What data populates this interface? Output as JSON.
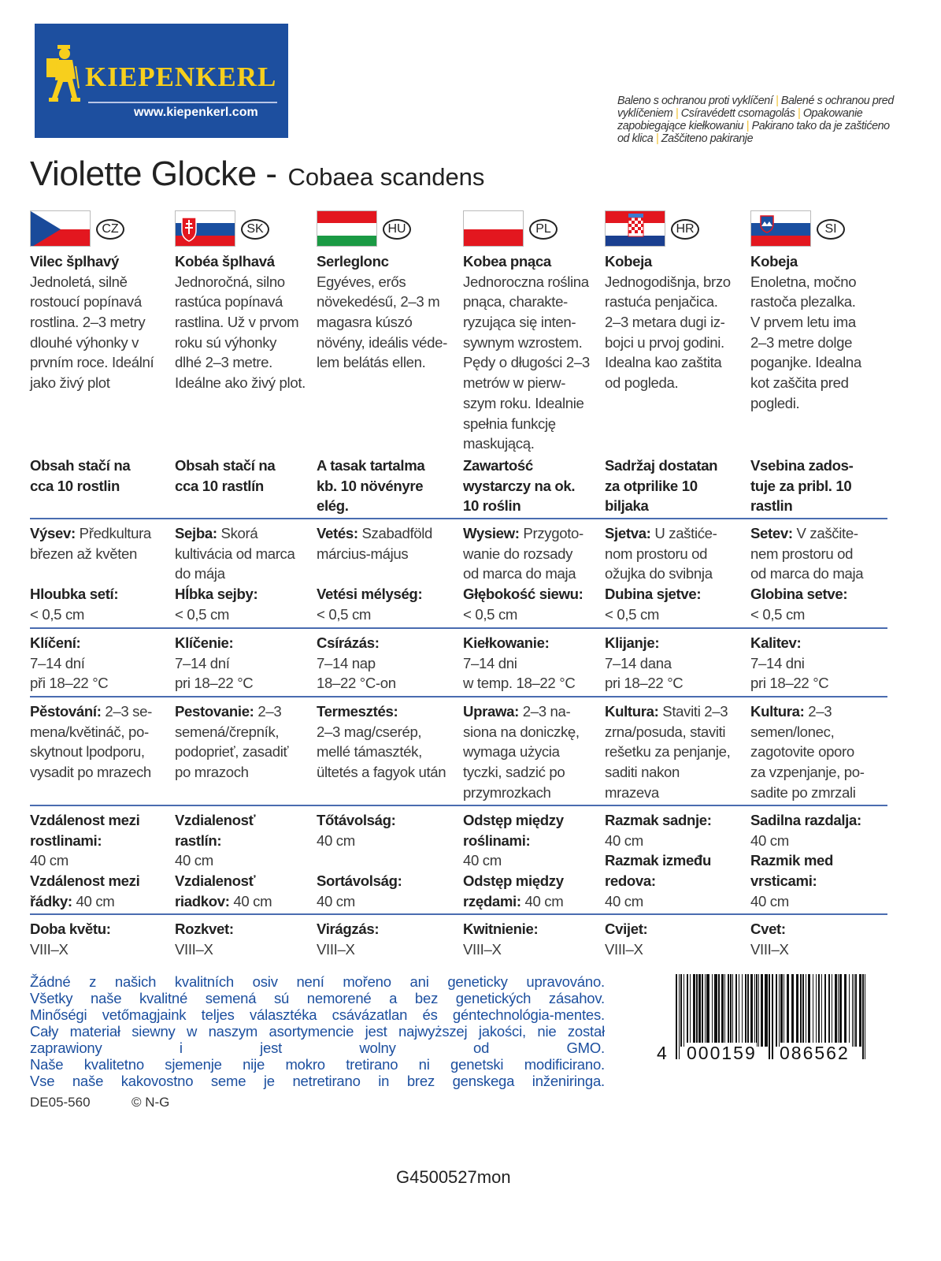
{
  "logo": {
    "brand": "KIEPENKERL",
    "url": "www.kiepenkerl.com",
    "brand_color": "#1d4f9f",
    "accent_color": "#f7cf1d"
  },
  "notice": [
    "Baleno s ochranou proti vyklíčení",
    "Balené s ochranou pred vyklíčeniem",
    "Csíravédett csomagolás",
    "Opakowanie zapobiegające kiełkowaniu",
    "Pakirano tako da je zaštićeno od klica",
    "Zaščiteno pakiranje"
  ],
  "title": {
    "main": "Violette Glocke -",
    "scientific": "Cobaea scandens"
  },
  "columns": [
    {
      "code": "CZ",
      "flag": "czech-flag",
      "intro": [
        [
          "Vilec šplhavý",
          ""
        ],
        [
          "",
          "Jednoletá, silně"
        ],
        [
          "",
          "rostoucí popínavá"
        ],
        [
          "",
          "rostlina. 2–3 metry"
        ],
        [
          "",
          "dlouhé výhonky v"
        ],
        [
          "",
          "prvním roce. Ideální"
        ],
        [
          "",
          "jako živý plot"
        ]
      ],
      "content": [
        [
          "Obsah stačí na",
          ""
        ],
        [
          "cca 10 rostlin",
          ""
        ]
      ],
      "sowing": [
        [
          "Výsev:",
          " Předkultura"
        ],
        [
          "",
          "březen až květen"
        ],
        [
          "",
          ""
        ],
        [
          "Hloubka setí:",
          ""
        ],
        [
          "",
          "< 0,5 cm"
        ]
      ],
      "germination": [
        [
          "Klíčení:",
          ""
        ],
        [
          "",
          "7–14 dní"
        ],
        [
          "",
          "při 18–22 °C"
        ]
      ],
      "cultivation": [
        [
          "Pěstování:",
          " 2–3 se-"
        ],
        [
          "",
          "mena/květináč, po-"
        ],
        [
          "",
          "skytnout lpodporu,"
        ],
        [
          "",
          "vysadit po mrazech"
        ]
      ],
      "spacing": [
        [
          "Vzdálenost mezi",
          ""
        ],
        [
          "rostlinami:",
          ""
        ],
        [
          "",
          "40 cm"
        ],
        [
          "Vzdálenost mezi",
          ""
        ],
        [
          "řádky:",
          " 40 cm"
        ]
      ],
      "bloom": [
        [
          "Doba květu:",
          ""
        ],
        [
          "",
          "VIII–X"
        ]
      ]
    },
    {
      "code": "SK",
      "flag": "slovak-flag",
      "intro": [
        [
          "Kobéa šplhavá",
          ""
        ],
        [
          "",
          "Jednoročná, silno"
        ],
        [
          "",
          "rastúca popínavá"
        ],
        [
          "",
          "rastlina. Už v prvom"
        ],
        [
          "",
          "roku sú výhonky"
        ],
        [
          "",
          "dlhé 2–3 metre."
        ],
        [
          "",
          "Ideálne ako živý plot."
        ]
      ],
      "content": [
        [
          "Obsah stačí na",
          ""
        ],
        [
          "cca 10 rastlín",
          ""
        ]
      ],
      "sowing": [
        [
          "Sejba:",
          " Skorá"
        ],
        [
          "",
          "kultivácia od marca"
        ],
        [
          "",
          "do mája"
        ],
        [
          "Hĺbka sejby:",
          ""
        ],
        [
          "",
          "< 0,5 cm"
        ]
      ],
      "germination": [
        [
          "Klíčenie:",
          ""
        ],
        [
          "",
          "7–14 dní"
        ],
        [
          "",
          "pri 18–22 °C"
        ]
      ],
      "cultivation": [
        [
          "Pestovanie:",
          " 2–3"
        ],
        [
          "",
          "semená/črepník,"
        ],
        [
          "",
          "podoprieť, zasadiť"
        ],
        [
          "",
          "po mrazoch"
        ]
      ],
      "spacing": [
        [
          "Vzdialenosť",
          ""
        ],
        [
          "rastlín:",
          ""
        ],
        [
          "",
          "40 cm"
        ],
        [
          "Vzdialenosť",
          ""
        ],
        [
          "riadkov:",
          " 40 cm"
        ]
      ],
      "bloom": [
        [
          "Rozkvet:",
          ""
        ],
        [
          "",
          "VIII–X"
        ]
      ]
    },
    {
      "code": "HU",
      "flag": "hungarian-flag",
      "intro": [
        [
          "Serleglonc",
          ""
        ],
        [
          "",
          "Egyéves, erős"
        ],
        [
          "",
          "növekedésű, 2–3 m"
        ],
        [
          "",
          "magasra kúszó"
        ],
        [
          "",
          "növény, ideális véde-"
        ],
        [
          "",
          "lem belátás ellen."
        ]
      ],
      "content": [
        [
          "A tasak tartalma",
          ""
        ],
        [
          "kb. 10 növényre",
          ""
        ],
        [
          "elég.",
          ""
        ]
      ],
      "sowing": [
        [
          "Vetés:",
          " Szabadföld"
        ],
        [
          "",
          "március-május"
        ],
        [
          "",
          ""
        ],
        [
          "Vetési mélység:",
          ""
        ],
        [
          "",
          "< 0,5 cm"
        ]
      ],
      "germination": [
        [
          "Csírázás:",
          ""
        ],
        [
          "",
          "7–14 nap"
        ],
        [
          "",
          "18–22 °C-on"
        ]
      ],
      "cultivation": [
        [
          "Termesztés:",
          ""
        ],
        [
          "",
          "2–3 mag/cserép,"
        ],
        [
          "",
          "mellé támaszték,"
        ],
        [
          "",
          "ültetés a fagyok után"
        ]
      ],
      "spacing": [
        [
          "Tőtávolság:",
          ""
        ],
        [
          "",
          "40 cm"
        ],
        [
          "",
          ""
        ],
        [
          "Sortávolság:",
          ""
        ],
        [
          "",
          "40 cm"
        ]
      ],
      "bloom": [
        [
          "Virágzás:",
          ""
        ],
        [
          "",
          "VIII–X"
        ]
      ]
    },
    {
      "code": "PL",
      "flag": "polish-flag",
      "intro": [
        [
          "Kobea pnąca",
          ""
        ],
        [
          "",
          "Jednoroczna roślina"
        ],
        [
          "",
          "pnąca, charakte-"
        ],
        [
          "",
          "ryzująca się inten-"
        ],
        [
          "",
          "sywnym wzrostem."
        ],
        [
          "",
          "Pędy o długości 2–3"
        ],
        [
          "",
          "metrów w pierw-"
        ],
        [
          "",
          "szym roku. Idealnie"
        ],
        [
          "",
          "spełnia funkcję"
        ],
        [
          "",
          "maskującą."
        ]
      ],
      "content": [
        [
          "Zawartość",
          ""
        ],
        [
          "wystarczy na ok.",
          ""
        ],
        [
          "10 roślin",
          ""
        ]
      ],
      "sowing": [
        [
          "Wysiew:",
          " Przygoto-"
        ],
        [
          "",
          "wanie do rozsady"
        ],
        [
          "",
          "od marca do maja"
        ],
        [
          "Głębokość siewu:",
          ""
        ],
        [
          "",
          "< 0,5 cm"
        ]
      ],
      "germination": [
        [
          "Kiełkowanie:",
          ""
        ],
        [
          "",
          "7–14 dni"
        ],
        [
          "",
          "w temp. 18–22 °C"
        ]
      ],
      "cultivation": [
        [
          "Uprawa:",
          " 2–3 na-"
        ],
        [
          "",
          "siona na doniczkę,"
        ],
        [
          "",
          "wymaga użycia"
        ],
        [
          "",
          "tyczki, sadzić po"
        ],
        [
          "",
          "przymrozkach"
        ]
      ],
      "spacing": [
        [
          "Odstęp między",
          ""
        ],
        [
          "roślinami:",
          ""
        ],
        [
          "",
          "40 cm"
        ],
        [
          "Odstęp między",
          ""
        ],
        [
          "rzędami:",
          " 40 cm"
        ]
      ],
      "bloom": [
        [
          "Kwitnienie:",
          ""
        ],
        [
          "",
          "VIII–X"
        ]
      ]
    },
    {
      "code": "HR",
      "flag": "croatian-flag",
      "intro": [
        [
          "Kobeja",
          ""
        ],
        [
          "",
          "Jednogodišnja, brzo"
        ],
        [
          "",
          "rastuća penjačica."
        ],
        [
          "",
          "2–3 metara dugi iz-"
        ],
        [
          "",
          "bojci u prvoj godini."
        ],
        [
          "",
          "Idealna kao zaštita"
        ],
        [
          "",
          "od pogleda."
        ]
      ],
      "content": [
        [
          "Sadržaj dostatan",
          ""
        ],
        [
          "za otprilike 10",
          ""
        ],
        [
          "biljaka",
          ""
        ]
      ],
      "sowing": [
        [
          "Sjetva:",
          " U zaštiće-"
        ],
        [
          "",
          "nom prostoru od"
        ],
        [
          "",
          "ožujka do svibnja"
        ],
        [
          "Dubina sjetve:",
          ""
        ],
        [
          "",
          "< 0,5 cm"
        ]
      ],
      "germination": [
        [
          "Klijanje:",
          ""
        ],
        [
          "",
          "7–14 dana"
        ],
        [
          "",
          "pri 18–22 °C"
        ]
      ],
      "cultivation": [
        [
          "Kultura:",
          " Staviti 2–3"
        ],
        [
          "",
          "zrna/posuda, staviti"
        ],
        [
          "",
          "rešetku za penjanje,"
        ],
        [
          "",
          "saditi nakon"
        ],
        [
          "",
          "mrazeva"
        ]
      ],
      "spacing": [
        [
          "Razmak sadnje:",
          ""
        ],
        [
          "",
          "40 cm"
        ],
        [
          "Razmak između",
          ""
        ],
        [
          "redova:",
          ""
        ],
        [
          "",
          "40 cm"
        ]
      ],
      "bloom": [
        [
          "Cvijet:",
          ""
        ],
        [
          "",
          "VIII–X"
        ]
      ]
    },
    {
      "code": "SI",
      "flag": "slovenian-flag",
      "intro": [
        [
          "Kobeja",
          ""
        ],
        [
          "",
          "Enoletna, močno"
        ],
        [
          "",
          "rastoča plezalka."
        ],
        [
          "",
          "V prvem letu ima"
        ],
        [
          "",
          "2–3 metre dolge"
        ],
        [
          "",
          "poganjke. Idealna"
        ],
        [
          "",
          "kot zaščita pred"
        ],
        [
          "",
          "pogledi."
        ]
      ],
      "content": [
        [
          "Vsebina zados-",
          ""
        ],
        [
          "tuje za pribl. 10",
          ""
        ],
        [
          "rastlin",
          ""
        ]
      ],
      "sowing": [
        [
          "Setev:",
          " V zaščite-"
        ],
        [
          "",
          "nem prostoru od"
        ],
        [
          "",
          "od marca do maja"
        ],
        [
          "Globina setve:",
          ""
        ],
        [
          "",
          "< 0,5 cm"
        ]
      ],
      "germination": [
        [
          "Kalitev:",
          ""
        ],
        [
          "",
          "7–14 dni"
        ],
        [
          "",
          "pri 18–22 °C"
        ]
      ],
      "cultivation": [
        [
          "Kultura:",
          " 2–3"
        ],
        [
          "",
          "semen/lonec,"
        ],
        [
          "",
          "zagotovite oporo"
        ],
        [
          "",
          "za vzpenjanje, po-"
        ],
        [
          "",
          "sadite po zmrzali"
        ]
      ],
      "spacing": [
        [
          "Sadilna razdalja:",
          ""
        ],
        [
          "",
          "40 cm"
        ],
        [
          "Razmik med",
          ""
        ],
        [
          "vrsticami:",
          ""
        ],
        [
          "",
          "40 cm"
        ]
      ],
      "bloom": [
        [
          "Cvet:",
          ""
        ],
        [
          "",
          "VIII–X"
        ]
      ]
    }
  ],
  "gmo_notice": [
    "Žádné z našich kvalitních osiv není mořeno ani geneticky upravováno.",
    "Všetky naše kvalitné semená sú nemorené a bez genetických zásahov.",
    "Minőségi vetőmagjaink teljes választéka csávázatlan és géntechnológia-mentes.",
    "Cały materiał siewny w naszym asortymencie jest najwyższej jakości, nie został",
    "zaprawiony i jest wolny od GMO.",
    "Naše kvalitetno sjemenje nije mokro tretirano ni genetski modificirano.",
    "Vse naše kakovostno seme je netretirano in brez genskega inženiringa."
  ],
  "gmo_color": "#1c4f9f",
  "barcode": {
    "digits": [
      "4",
      "000159",
      "086562"
    ]
  },
  "footer": {
    "article": "DE05-560",
    "copyright": "© N-G",
    "code": "G4500527mon"
  }
}
